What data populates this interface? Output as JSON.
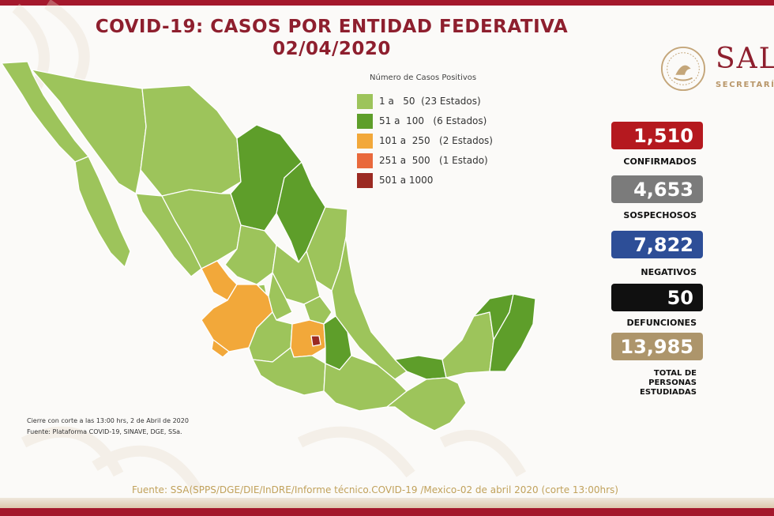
{
  "header": {
    "title": "COVID-19: CASOS POR ENTIDAD FEDERATIVA",
    "date": "02/04/2020"
  },
  "logo": {
    "text": "SAL",
    "subtitle": "SECRETARÍA"
  },
  "legend": {
    "title": "Número de Casos Positivos",
    "items": [
      {
        "label": "1 a   50  (23 Estados)",
        "color": "#9dc45b"
      },
      {
        "label": "51 a  100   (6 Estados)",
        "color": "#5e9e2a"
      },
      {
        "label": "101 a  250   (2 Estados)",
        "color": "#f2a83a"
      },
      {
        "label": "251 a  500   (1 Estado)",
        "color": "#e9693c"
      },
      {
        "label": "501 a 1000",
        "color": "#9b2a22"
      }
    ]
  },
  "stats": [
    {
      "value": "1,510",
      "label": "CONFIRMADOS",
      "color": "#b5191f"
    },
    {
      "value": "4,653",
      "label": "SOSPECHOSOS",
      "color": "#7b7b7b"
    },
    {
      "value": "7,822",
      "label": "NEGATIVOS",
      "color": "#2d4e97"
    },
    {
      "value": "50",
      "label": "DEFUNCIONES",
      "color": "#101010"
    },
    {
      "value": "13,985",
      "label": "TOTAL DE PERSONAS ESTUDIADAS",
      "label_lines": [
        "TOTAL DE",
        "PERSONAS",
        "ESTUDIADAS"
      ],
      "color": "#ad956b"
    }
  ],
  "notes": {
    "cutoff": "Cierre con corte a las 13:00 hrs, 2 de Abril de 2020",
    "source_short": "Fuente: Plataforma COVID-19, SINAVE, DGE, SSa."
  },
  "footer": {
    "source": "Fuente: SSA(SPPS/DGE/DIE/InDRE/Informe técnico.COVID-19 /Mexico-02 de abril 2020 (corte 13:00hrs)"
  },
  "colors": {
    "brand": "#8e1f2e",
    "accent_gold": "#b9976a"
  }
}
